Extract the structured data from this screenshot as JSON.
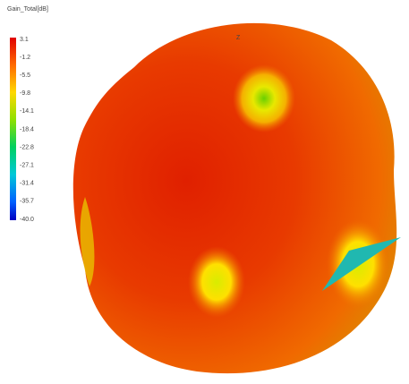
{
  "legend": {
    "title": "Gain_Total[dB]",
    "ticks": [
      "3.1",
      "-1.2",
      "-5.5",
      "-9.8",
      "-14.1",
      "-18.4",
      "-22.8",
      "-27.1",
      "-31.4",
      "-35.7",
      "-40.0"
    ]
  },
  "axes": {
    "z": "Z"
  }
}
